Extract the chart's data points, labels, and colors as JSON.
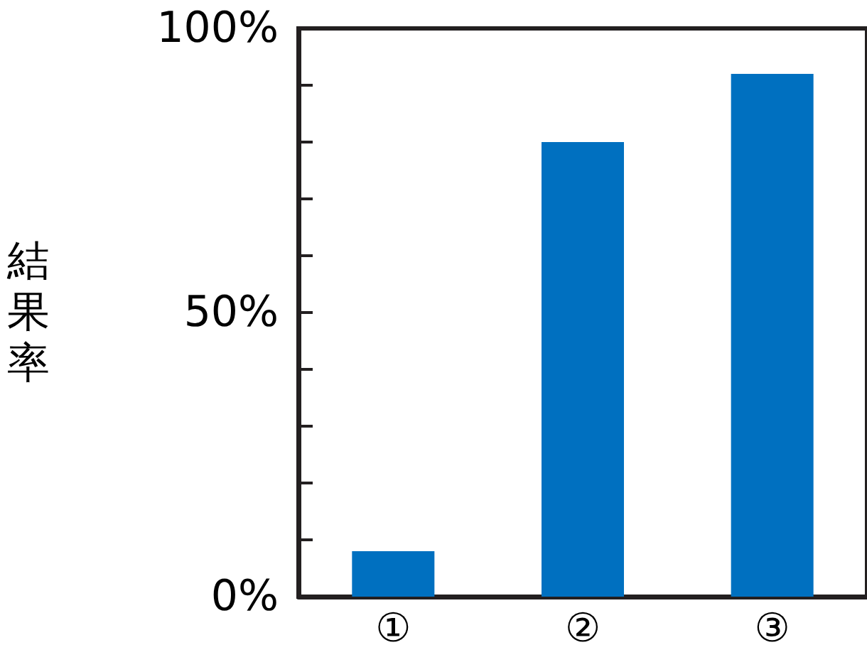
{
  "chart_data": {
    "type": "bar",
    "ylabel": "結果率",
    "categories": [
      "①",
      "②",
      "③"
    ],
    "values": [
      8,
      80,
      92
    ],
    "color": "#0070c0",
    "ylim": [
      0,
      100
    ],
    "yticks": [
      {
        "value": 0,
        "label": "0%"
      },
      {
        "value": 10,
        "label": null
      },
      {
        "value": 20,
        "label": null
      },
      {
        "value": 30,
        "label": null
      },
      {
        "value": 40,
        "label": null
      },
      {
        "value": 50,
        "label": "50%"
      },
      {
        "value": 60,
        "label": null
      },
      {
        "value": 70,
        "label": null
      },
      {
        "value": 80,
        "label": null
      },
      {
        "value": 90,
        "label": null
      },
      {
        "value": 100,
        "label": "100%"
      }
    ],
    "grid": false
  }
}
